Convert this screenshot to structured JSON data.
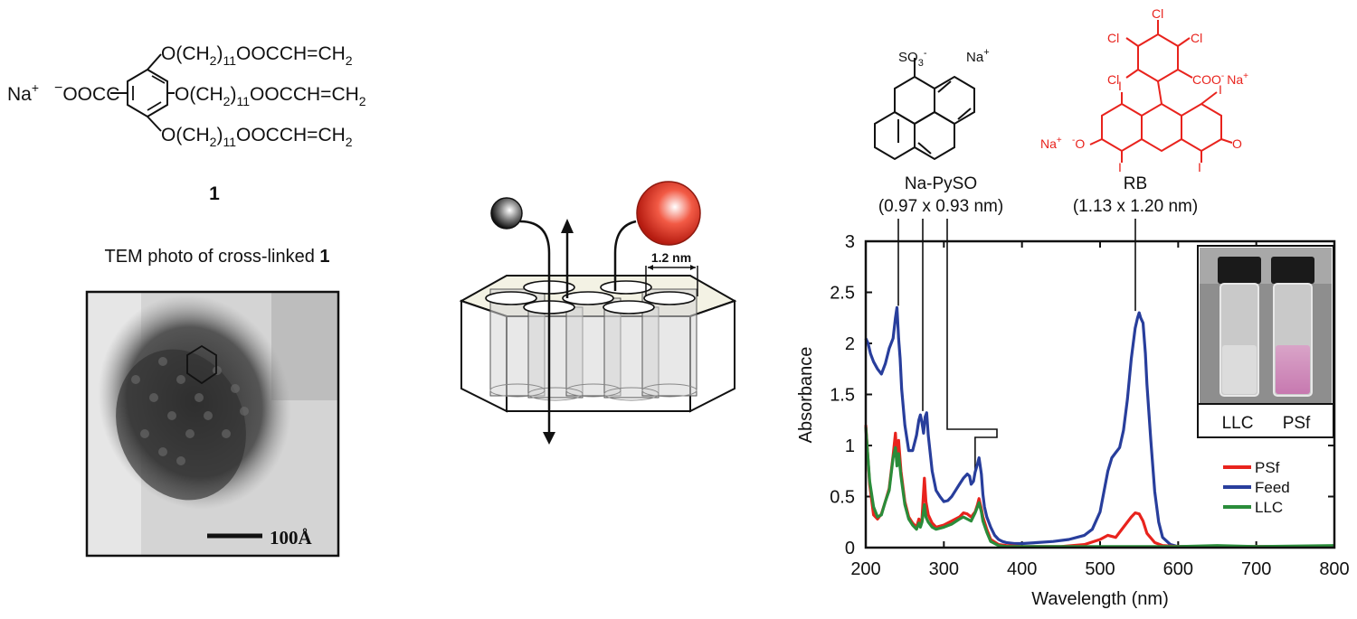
{
  "compound": {
    "counterion": "Na",
    "counterion_charge": "+",
    "head_charge": "−",
    "head_group": "OOC",
    "chain_O": "O(CH",
    "chain_sub2": "2",
    "chain_close": ")",
    "chain_sub11": "11",
    "chain_tail": "OOCCH=CH",
    "chain_end_sub": "2",
    "number": "1"
  },
  "tem": {
    "title_prefix": "TEM photo of cross-linked ",
    "title_number": "1",
    "scale_label": "100Å"
  },
  "schematic": {
    "pore_label": "1.2 nm"
  },
  "molecules": {
    "pyso_sulfonate": "SO",
    "pyso_sub": "3",
    "pyso_sup": "-",
    "pyso_na": "Na",
    "pyso_na_sup": "+",
    "pyso_name": "Na-PySO",
    "pyso_size": "(0.97 x 0.93 nm)",
    "rb_cl": "Cl",
    "rb_coo": "COO",
    "rb_coo_sup": "-",
    "rb_na": "Na",
    "rb_na_sup": "+",
    "rb_i": "I",
    "rb_o_minus": "O",
    "rb_o_minus_sup": "-",
    "rb_o": "O",
    "rb_name": "RB",
    "rb_size": "(1.13 x 1.20 nm)",
    "rb_color": "#e8231d"
  },
  "inset": {
    "labels": [
      "LLC",
      "PSf"
    ]
  },
  "chart_data": {
    "type": "line",
    "xlabel": "Wavelength (nm)",
    "ylabel": "Absorbance",
    "xlim": [
      200,
      800
    ],
    "ylim": [
      0,
      3
    ],
    "xticks": [
      200,
      300,
      400,
      500,
      600,
      700,
      800
    ],
    "yticks": [
      0,
      0.5,
      1,
      1.5,
      2,
      2.5,
      3
    ],
    "ytick_labels": [
      "0",
      "0.5",
      "1",
      "1.5",
      "2",
      "2.5",
      "3"
    ],
    "legend_position": "lower-right",
    "series": [
      {
        "name": "PSf",
        "color": "#e8231d",
        "x": [
          200,
          205,
          210,
          215,
          220,
          225,
          230,
          235,
          238,
          240,
          242,
          245,
          250,
          255,
          260,
          265,
          268,
          270,
          272,
          275,
          277,
          280,
          285,
          290,
          300,
          310,
          320,
          325,
          330,
          335,
          340,
          343,
          345,
          348,
          350,
          355,
          360,
          370,
          380,
          400,
          450,
          480,
          500,
          510,
          520,
          530,
          540,
          545,
          550,
          555,
          560,
          570,
          580,
          600,
          650,
          700,
          800
        ],
        "y": [
          1.2,
          0.62,
          0.32,
          0.28,
          0.33,
          0.45,
          0.58,
          0.9,
          1.12,
          0.85,
          1.05,
          0.75,
          0.45,
          0.3,
          0.24,
          0.2,
          0.28,
          0.22,
          0.29,
          0.68,
          0.45,
          0.32,
          0.24,
          0.2,
          0.22,
          0.26,
          0.3,
          0.34,
          0.33,
          0.3,
          0.35,
          0.42,
          0.48,
          0.38,
          0.3,
          0.18,
          0.08,
          0.03,
          0.02,
          0.01,
          0.01,
          0.03,
          0.08,
          0.12,
          0.1,
          0.2,
          0.3,
          0.34,
          0.33,
          0.26,
          0.14,
          0.05,
          0.02,
          0.01,
          0.01,
          0.01,
          0.01
        ]
      },
      {
        "name": "Feed",
        "color": "#283e9c",
        "x": [
          200,
          203,
          206,
          210,
          215,
          220,
          225,
          230,
          235,
          238,
          240,
          242,
          244,
          246,
          250,
          255,
          260,
          265,
          268,
          270,
          272,
          274,
          276,
          278,
          280,
          285,
          290,
          295,
          300,
          305,
          310,
          315,
          320,
          325,
          330,
          333,
          335,
          338,
          340,
          343,
          345,
          348,
          350,
          352,
          355,
          360,
          365,
          370,
          375,
          380,
          390,
          400,
          420,
          440,
          460,
          480,
          490,
          500,
          505,
          510,
          515,
          520,
          525,
          530,
          535,
          540,
          545,
          548,
          550,
          552,
          555,
          558,
          560,
          565,
          570,
          575,
          580,
          590,
          600,
          700,
          800
        ],
        "y": [
          2.05,
          2.0,
          1.9,
          1.82,
          1.75,
          1.7,
          1.8,
          1.95,
          2.05,
          2.25,
          2.35,
          2.05,
          1.85,
          1.55,
          1.2,
          0.95,
          0.95,
          1.1,
          1.25,
          1.3,
          1.22,
          1.12,
          1.28,
          1.32,
          1.1,
          0.75,
          0.56,
          0.5,
          0.45,
          0.46,
          0.5,
          0.56,
          0.62,
          0.68,
          0.72,
          0.7,
          0.62,
          0.65,
          0.74,
          0.82,
          0.88,
          0.72,
          0.52,
          0.4,
          0.3,
          0.2,
          0.12,
          0.08,
          0.06,
          0.05,
          0.04,
          0.04,
          0.05,
          0.06,
          0.08,
          0.12,
          0.18,
          0.35,
          0.55,
          0.75,
          0.88,
          0.93,
          0.98,
          1.15,
          1.45,
          1.85,
          2.15,
          2.25,
          2.3,
          2.25,
          2.2,
          1.9,
          1.6,
          1.05,
          0.55,
          0.25,
          0.1,
          0.03,
          0.01,
          0.01,
          0.01
        ]
      },
      {
        "name": "LLC",
        "color": "#2a8c3a",
        "x": [
          200,
          205,
          210,
          215,
          220,
          225,
          230,
          235,
          238,
          240,
          242,
          245,
          250,
          255,
          260,
          265,
          268,
          270,
          272,
          275,
          277,
          280,
          285,
          290,
          300,
          310,
          320,
          325,
          330,
          335,
          340,
          343,
          345,
          348,
          350,
          355,
          360,
          370,
          380,
          400,
          500,
          600,
          650,
          700,
          800
        ],
        "y": [
          1.18,
          0.65,
          0.4,
          0.3,
          0.32,
          0.45,
          0.56,
          0.88,
          0.98,
          0.8,
          0.92,
          0.7,
          0.42,
          0.28,
          0.22,
          0.18,
          0.24,
          0.2,
          0.25,
          0.42,
          0.3,
          0.25,
          0.2,
          0.18,
          0.2,
          0.23,
          0.28,
          0.3,
          0.28,
          0.26,
          0.34,
          0.4,
          0.44,
          0.35,
          0.26,
          0.15,
          0.06,
          0.02,
          0.01,
          0.01,
          0.01,
          0.01,
          0.02,
          0.01,
          0.02
        ]
      }
    ]
  }
}
